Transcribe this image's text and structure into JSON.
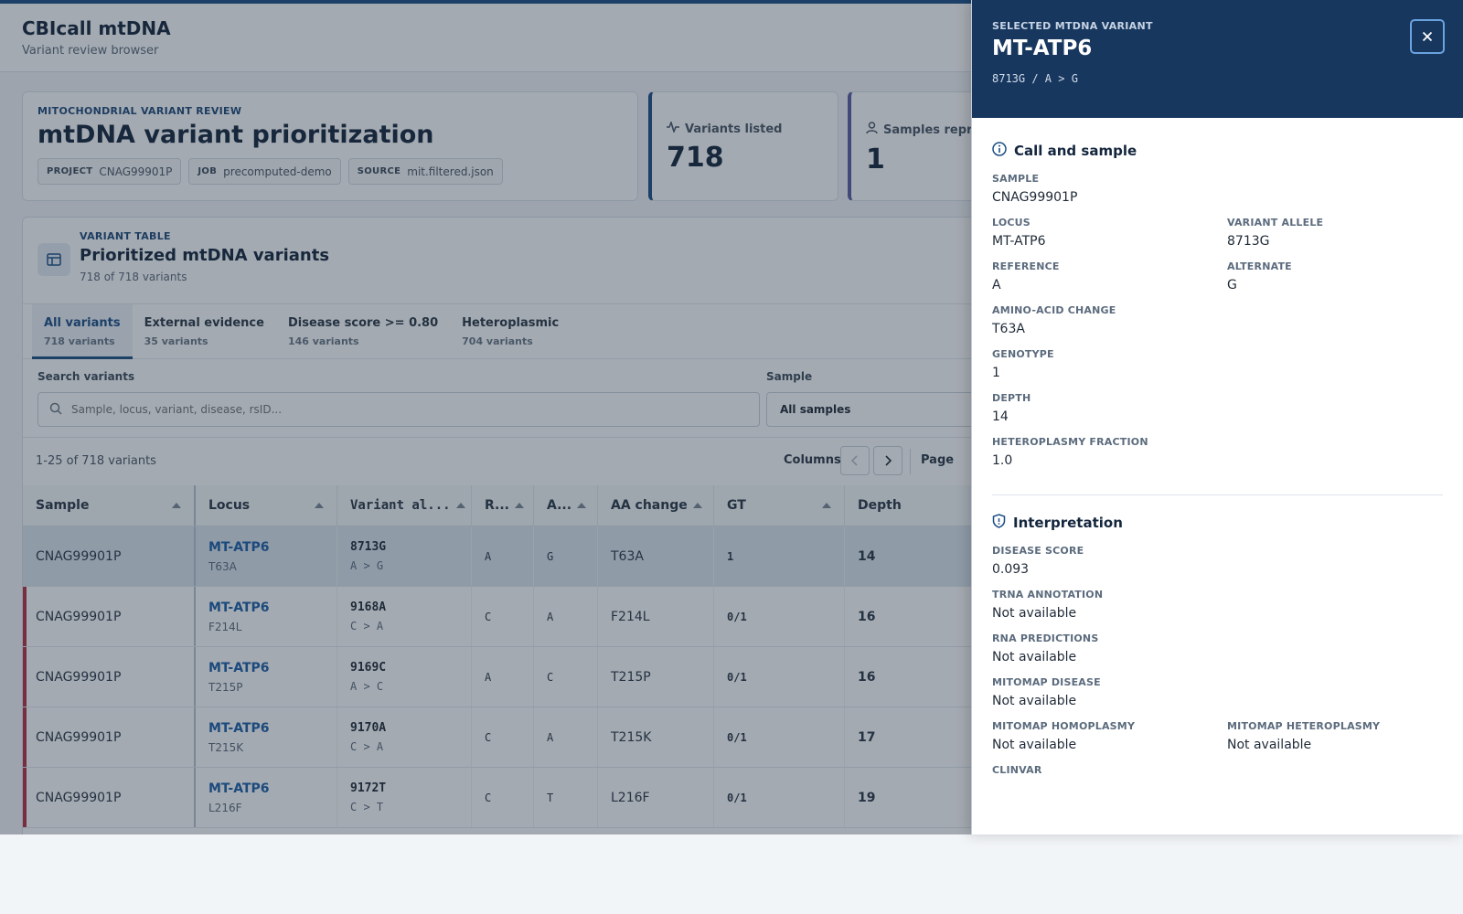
{
  "app": {
    "title": "CBIcall mtDNA",
    "subtitle": "Variant review browser"
  },
  "summary": {
    "eyebrow": "MITOCHONDRIAL VARIANT REVIEW",
    "title": "mtDNA variant prioritization",
    "chips": [
      {
        "key": "PROJECT",
        "value": "CNAG99901P"
      },
      {
        "key": "JOB",
        "value": "precomputed-demo"
      },
      {
        "key": "SOURCE",
        "value": "mit.filtered.json"
      }
    ]
  },
  "stats": [
    {
      "label": "Variants listed",
      "value": "718",
      "icon": "activity-icon"
    },
    {
      "label": "Samples repre",
      "value": "1",
      "icon": "user-icon"
    }
  ],
  "table_card": {
    "eyebrow": "VARIANT TABLE",
    "title": "Prioritized mtDNA variants",
    "count": "718 of 718 variants",
    "tabs": [
      {
        "label": "All variants",
        "sub": "718 variants",
        "active": true
      },
      {
        "label": "External evidence",
        "sub": "35 variants",
        "active": false
      },
      {
        "label": "Disease score >= 0.80",
        "sub": "146 variants",
        "active": false
      },
      {
        "label": "Heteroplasmic",
        "sub": "704 variants",
        "active": false
      }
    ],
    "search": {
      "label": "Search variants",
      "placeholder": "Sample, locus, variant, disease, rsID..."
    },
    "sample_filter": {
      "label": "Sample",
      "value": "All samples"
    },
    "pager": {
      "range": "1-25 of 718 variants",
      "columns_label": "Columns",
      "page_label": "Page"
    },
    "columns": [
      "Sample",
      "Locus",
      "Variant al...",
      "R...",
      "A...",
      "AA change",
      "GT",
      "Depth"
    ],
    "rows": [
      {
        "sample": "CNAG99901P",
        "locus": "MT-ATP6",
        "locus_sub": "T63A",
        "variant": "8713G",
        "variant_sub": "A > G",
        "ref": "A",
        "alt": "G",
        "aa": "T63A",
        "gt": "1",
        "depth": "14",
        "flag": false,
        "selected": true
      },
      {
        "sample": "CNAG99901P",
        "locus": "MT-ATP6",
        "locus_sub": "F214L",
        "variant": "9168A",
        "variant_sub": "C > A",
        "ref": "C",
        "alt": "A",
        "aa": "F214L",
        "gt": "0/1",
        "depth": "16",
        "flag": true,
        "selected": false
      },
      {
        "sample": "CNAG99901P",
        "locus": "MT-ATP6",
        "locus_sub": "T215P",
        "variant": "9169C",
        "variant_sub": "A > C",
        "ref": "A",
        "alt": "C",
        "aa": "T215P",
        "gt": "0/1",
        "depth": "16",
        "flag": true,
        "selected": false
      },
      {
        "sample": "CNAG99901P",
        "locus": "MT-ATP6",
        "locus_sub": "T215K",
        "variant": "9170A",
        "variant_sub": "C > A",
        "ref": "C",
        "alt": "A",
        "aa": "T215K",
        "gt": "0/1",
        "depth": "17",
        "flag": true,
        "selected": false
      },
      {
        "sample": "CNAG99901P",
        "locus": "MT-ATP6",
        "locus_sub": "L216F",
        "variant": "9172T",
        "variant_sub": "C > T",
        "ref": "C",
        "alt": "T",
        "aa": "L216F",
        "gt": "0/1",
        "depth": "19",
        "flag": true,
        "selected": false
      }
    ]
  },
  "drawer": {
    "eyebrow": "SELECTED MTDNA VARIANT",
    "title": "MT-ATP6",
    "subtitle": "8713G / A > G",
    "call_section": {
      "title": "Call and sample",
      "fields": {
        "sample": {
          "label": "SAMPLE",
          "value": "CNAG99901P"
        },
        "locus": {
          "label": "LOCUS",
          "value": "MT-ATP6"
        },
        "variant_allele": {
          "label": "VARIANT ALLELE",
          "value": "8713G"
        },
        "reference": {
          "label": "REFERENCE",
          "value": "A"
        },
        "alternate": {
          "label": "ALTERNATE",
          "value": "G"
        },
        "aa_change": {
          "label": "AMINO-ACID CHANGE",
          "value": "T63A"
        },
        "genotype": {
          "label": "GENOTYPE",
          "value": "1"
        },
        "depth": {
          "label": "DEPTH",
          "value": "14"
        },
        "heteroplasmy": {
          "label": "HETEROPLASMY FRACTION",
          "value": "1.0"
        }
      }
    },
    "interp_section": {
      "title": "Interpretation",
      "fields": {
        "disease_score": {
          "label": "DISEASE SCORE",
          "value": "0.093"
        },
        "trna": {
          "label": "TRNA ANNOTATION",
          "value": "Not available"
        },
        "rna_pred": {
          "label": "RNA PREDICTIONS",
          "value": "Not available"
        },
        "mitomap_disease": {
          "label": "MITOMAP DISEASE",
          "value": "Not available"
        },
        "mitomap_homo": {
          "label": "MITOMAP HOMOPLASMY",
          "value": "Not available"
        },
        "mitomap_hetero": {
          "label": "MITOMAP HETEROPLASMY",
          "value": "Not available"
        },
        "clinvar": {
          "label": "CLINVAR",
          "value": ""
        }
      }
    }
  },
  "colors": {
    "brand": "#1d4f86",
    "drawer_header": "#17375f",
    "flag": "#b4333f",
    "link": "#1d5fa8"
  }
}
